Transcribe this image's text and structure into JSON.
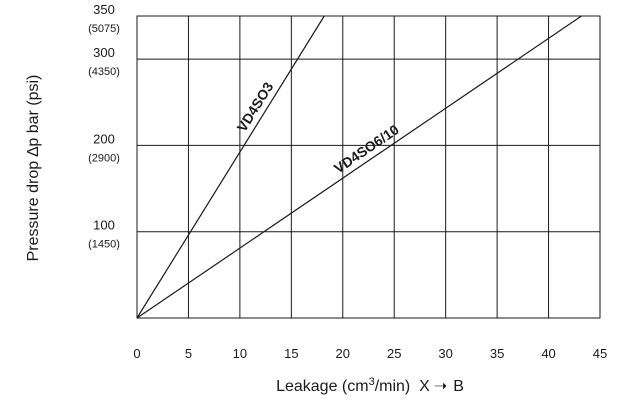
{
  "chart_data": {
    "type": "line",
    "title": "",
    "xlabel": {
      "prefix": "Leakage (cm",
      "superscript": "3",
      "suffix": "/min)  X",
      "arrow": "➝",
      "tail": "B"
    },
    "ylabel": "Pressure drop ∆p  bar (psi)",
    "xlim": [
      0,
      45
    ],
    "ylim": [
      0,
      350
    ],
    "x_ticks": [
      "0",
      "5",
      "10",
      "15",
      "20",
      "25",
      "30",
      "35",
      "40",
      "45"
    ],
    "y_ticks": [
      {
        "value": 100,
        "label": "100",
        "sublabel": "(1450)"
      },
      {
        "value": 200,
        "label": "200",
        "sublabel": "(2900)"
      },
      {
        "value": 300,
        "label": "300",
        "sublabel": "(4350)"
      },
      {
        "value": 350,
        "label": "350",
        "sublabel": "(5075)"
      }
    ],
    "grid": true,
    "series": [
      {
        "name": "VD4SO3",
        "x": [
          0,
          18.2
        ],
        "y": [
          0,
          350
        ]
      },
      {
        "name": "VD4SO6/10",
        "x": [
          0,
          43.2
        ],
        "y": [
          0,
          350
        ]
      }
    ]
  }
}
